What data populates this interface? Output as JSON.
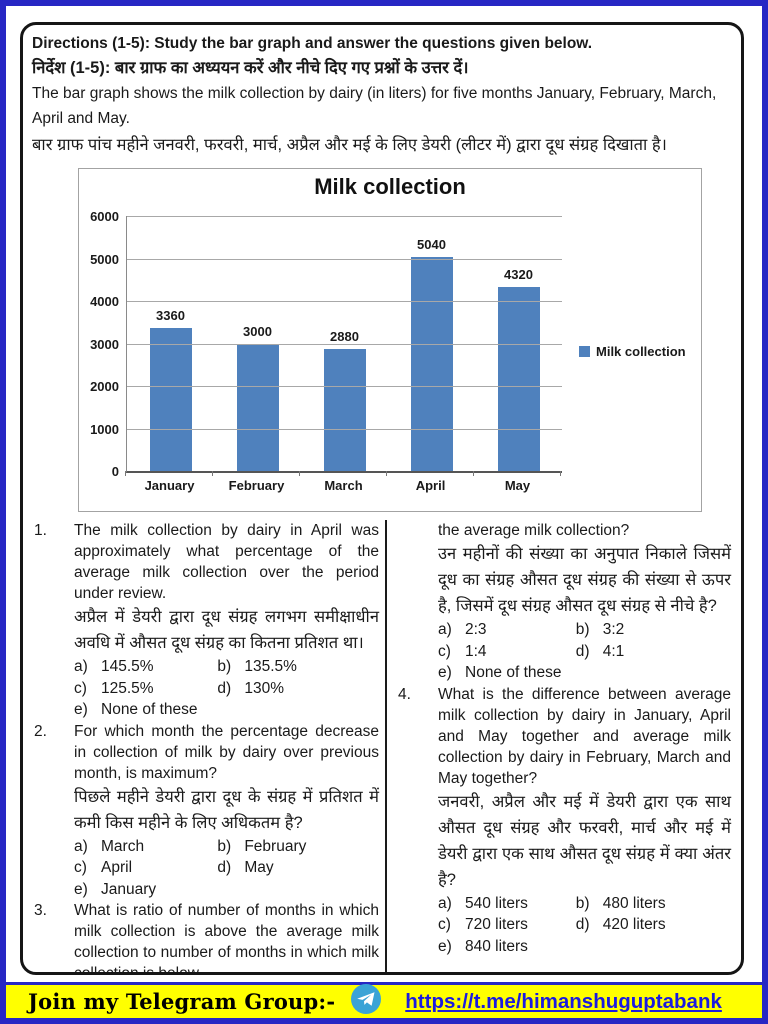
{
  "instructions": {
    "directions_en": "Directions (1-5): Study the bar graph and answer the questions given below.",
    "directions_hi": "निर्देश (1-5): बार ग्राफ का अध्ययन करें और नीचे दिए गए प्रश्नों के उत्तर दें।",
    "description_en": "The bar graph shows the milk collection by dairy (in liters) for five months January, February, March, April and May.",
    "description_hi": "बार ग्राफ पांच महीने जनवरी, फरवरी, मार्च, अप्रैल और मई के लिए डेयरी (लीटर में) द्वारा दूध संग्रह दिखाता है।"
  },
  "chart_data": {
    "type": "bar",
    "title": "Milk collection",
    "categories": [
      "January",
      "February",
      "March",
      "April",
      "May"
    ],
    "values": [
      3360,
      3000,
      2880,
      5040,
      4320
    ],
    "series": [
      {
        "name": "Milk collection",
        "values": [
          3360,
          3000,
          2880,
          5040,
          4320
        ]
      }
    ],
    "legend_position": "right",
    "xlabel": "",
    "ylabel": "",
    "ylim": [
      0,
      6000
    ],
    "yticks": [
      0,
      1000,
      2000,
      3000,
      4000,
      5000,
      6000
    ],
    "grid": true,
    "bar_color": "#4f81bd"
  },
  "questions": {
    "q1": {
      "num": "1.",
      "en": "The milk collection by dairy in April was approximately what percentage of the average milk collection over the period under review.",
      "hi": "अप्रैल में डेयरी द्वारा दूध संग्रह लगभग समीक्षाधीन अवधि में औसत दूध संग्रह का कितना प्रतिशत था।",
      "options": [
        {
          "label": "a)",
          "text": "145.5%"
        },
        {
          "label": "b)",
          "text": "135.5%"
        },
        {
          "label": "c)",
          "text": "125.5%"
        },
        {
          "label": "d)",
          "text": "130%"
        },
        {
          "label": "e)",
          "text": "None of these"
        }
      ]
    },
    "q2": {
      "num": "2.",
      "en": "For which month the percentage decrease in collection of milk by dairy over previous month, is maximum?",
      "hi": "पिछले महीने डेयरी द्वारा दूध के संग्रह में प्रतिशत में कमी किस महीने के लिए अधिकतम है?",
      "options": [
        {
          "label": "a)",
          "text": "March"
        },
        {
          "label": "b)",
          "text": "February"
        },
        {
          "label": "c)",
          "text": "April"
        },
        {
          "label": "d)",
          "text": "May"
        },
        {
          "label": "e)",
          "text": "January"
        }
      ]
    },
    "q3": {
      "num": "3.",
      "en_part1": "What is ratio of number of months in which milk collection is above the average milk collection to number of months in which milk collection is below",
      "en_part2": "the average milk collection?",
      "hi": "उन महीनों की संख्या का अनुपात निकाले जिसमें दूध का संग्रह औसत दूध संग्रह की संख्या से ऊपर है, जिसमें दूध संग्रह औसत दूध संग्रह से नीचे है?",
      "options": [
        {
          "label": "a)",
          "text": "2:3"
        },
        {
          "label": "b)",
          "text": "3:2"
        },
        {
          "label": "c)",
          "text": "1:4"
        },
        {
          "label": "d)",
          "text": "4:1"
        },
        {
          "label": "e)",
          "text": "None of these"
        }
      ]
    },
    "q4": {
      "num": "4.",
      "en": "What is the difference between average milk collection by dairy in January, April and May together and average milk collection by dairy in February, March and May together?",
      "hi": "जनवरी, अप्रैल और मई में डेयरी द्वारा एक साथ औसत दूध संग्रह और फरवरी, मार्च और मई में डेयरी द्वारा एक साथ औसत दूध संग्रह में क्या अंतर है?",
      "options": [
        {
          "label": "a)",
          "text": "540 liters"
        },
        {
          "label": "b)",
          "text": "480 liters"
        },
        {
          "label": "c)",
          "text": "720 liters"
        },
        {
          "label": "d)",
          "text": "420 liters"
        },
        {
          "label": "e)",
          "text": "840 liters"
        }
      ]
    }
  },
  "footer": {
    "label": "Join my Telegram Group:-",
    "link": "https://t.me/himanshuguptabank"
  },
  "colors": {
    "page_border": "#2727c4",
    "bar": "#4f81bd",
    "footer_bg": "#ffff00",
    "link": "#1b1be0"
  }
}
